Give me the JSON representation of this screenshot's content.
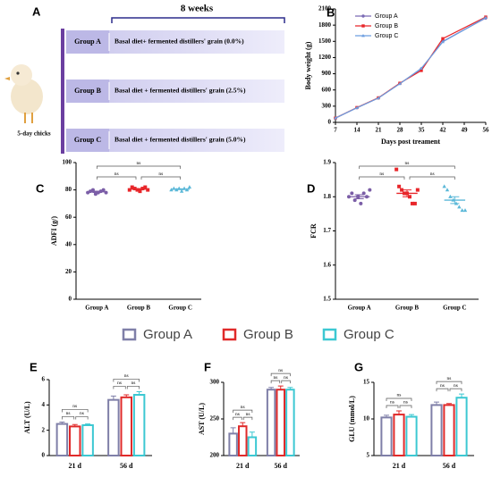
{
  "diagram": {
    "label": "A",
    "duration": "8 weeks",
    "animal": "5-day chicks",
    "groups": [
      {
        "name": "Group A",
        "treatment": "Basal diet+ fermented distillers' grain (0.0%)"
      },
      {
        "name": "Group B",
        "treatment": "Basal diet + fermented distillers' grain (2.5%)"
      },
      {
        "name": "Group C",
        "treatment": "Basal diet + fermented distillers' grain (5.0%)"
      }
    ]
  },
  "chart_data": [
    {
      "type": "line",
      "label": "B",
      "ylabel": "Body weight (g)",
      "xlabel": "Days post treament",
      "x": [
        7,
        14,
        21,
        28,
        35,
        42,
        56
      ],
      "series": [
        {
          "name": "Group A",
          "color": "#7b6bb5",
          "values": [
            80,
            270,
            450,
            720,
            990,
            1500,
            1930
          ]
        },
        {
          "name": "Group B",
          "color": "#e8262a",
          "values": [
            80,
            275,
            455,
            725,
            960,
            1550,
            1950
          ]
        },
        {
          "name": "Group C",
          "color": "#6c9ee0",
          "values": [
            80,
            270,
            450,
            715,
            1000,
            1490,
            1940
          ]
        }
      ],
      "xlim": [
        7,
        56
      ],
      "xticks": [
        7,
        14,
        21,
        28,
        35,
        42,
        49,
        56
      ],
      "ylim": [
        0,
        2100
      ],
      "yticks": [
        0,
        300,
        600,
        900,
        1200,
        1500,
        1800,
        2100
      ],
      "legend": "upper left"
    },
    {
      "type": "dot",
      "label": "C",
      "ylabel": "ADFI (g/)",
      "categories": [
        "Group A",
        "Group B",
        "Group C"
      ],
      "colors": [
        "#7b5ea7",
        "#e8262a",
        "#5bb8d8"
      ],
      "points": [
        [
          78,
          79,
          80,
          77,
          78,
          79,
          80,
          78
        ],
        [
          80,
          82,
          81,
          80,
          79,
          81,
          82,
          80
        ],
        [
          80,
          81,
          80,
          81,
          79,
          81,
          80,
          82
        ]
      ],
      "means": [
        78.6,
        80.6,
        80.5
      ],
      "errors": [
        0.5,
        0.4,
        0.3
      ],
      "ylim": [
        0,
        100
      ],
      "yticks": [
        0,
        20,
        40,
        60,
        80,
        100
      ],
      "annotations": [
        "ns",
        "ns",
        "ns"
      ]
    },
    {
      "type": "dot",
      "label": "D",
      "ylabel": "FCR",
      "categories": [
        "Group A",
        "Group B",
        "Group C"
      ],
      "colors": [
        "#7b5ea7",
        "#e8262a",
        "#5bb8d8"
      ],
      "points": [
        [
          1.8,
          1.81,
          1.79,
          1.8,
          1.78,
          1.81,
          1.8,
          1.82
        ],
        [
          1.88,
          1.83,
          1.82,
          1.81,
          1.81,
          1.8,
          1.78,
          1.78,
          1.82
        ],
        [
          1.83,
          1.82,
          1.8,
          1.79,
          1.78,
          1.77,
          1.76,
          1.76
        ]
      ],
      "means": [
        1.8,
        1.81,
        1.79
      ],
      "errors": [
        0.006,
        0.01,
        0.01
      ],
      "ylim": [
        1.5,
        1.9
      ],
      "yticks": [
        1.5,
        1.6,
        1.7,
        1.8,
        1.9
      ],
      "annotations": [
        "ns",
        "ns",
        "ns"
      ]
    },
    {
      "type": "bar",
      "label": "E",
      "ylabel": "ALT (U/L)",
      "categories": [
        "21 d",
        "56 d"
      ],
      "series": [
        {
          "name": "Group A",
          "color": "#7f7fa8",
          "values": [
            2.5,
            4.4
          ],
          "errors": [
            0.15,
            0.3
          ]
        },
        {
          "name": "Group B",
          "color": "#e02a2a",
          "values": [
            2.3,
            4.6
          ],
          "errors": [
            0.15,
            0.2
          ]
        },
        {
          "name": "Group C",
          "color": "#3cc8d2",
          "values": [
            2.4,
            4.8
          ],
          "errors": [
            0.1,
            0.25
          ]
        }
      ],
      "ylim": [
        0,
        6
      ],
      "yticks": [
        0,
        2,
        4,
        6
      ],
      "annotations": [
        "ns",
        "ns",
        "ns",
        "ns",
        "ns",
        "ns"
      ]
    },
    {
      "type": "bar",
      "label": "F",
      "ylabel": "AST (U/L)",
      "categories": [
        "21 d",
        "56 d"
      ],
      "series": [
        {
          "name": "Group A",
          "color": "#7f7fa8",
          "values": [
            230,
            290
          ],
          "errors": [
            8,
            3
          ]
        },
        {
          "name": "Group B",
          "color": "#e02a2a",
          "values": [
            240,
            290
          ],
          "errors": [
            5,
            5
          ]
        },
        {
          "name": "Group C",
          "color": "#3cc8d2",
          "values": [
            225,
            290
          ],
          "errors": [
            7,
            3
          ]
        }
      ],
      "ylim": [
        200,
        300
      ],
      "yticks": [
        200,
        250,
        300
      ],
      "annotations": [
        "ns",
        "ns",
        "ns",
        "ns",
        "ns",
        "ns"
      ]
    },
    {
      "type": "bar",
      "label": "G",
      "ylabel": "GLU (mmol/L)",
      "categories": [
        "21 d",
        "56 d"
      ],
      "series": [
        {
          "name": "Group A",
          "color": "#7f7fa8",
          "values": [
            10.2,
            11.9
          ],
          "errors": [
            0.3,
            0.4
          ]
        },
        {
          "name": "Group B",
          "color": "#e02a2a",
          "values": [
            10.6,
            11.9
          ],
          "errors": [
            0.5,
            0.2
          ]
        },
        {
          "name": "Group C",
          "color": "#3cc8d2",
          "values": [
            10.3,
            12.9
          ],
          "errors": [
            0.3,
            0.5
          ]
        }
      ],
      "ylim": [
        5,
        15
      ],
      "yticks": [
        5,
        10,
        15
      ],
      "annotations": [
        "ns",
        "ns",
        "ns",
        "ns",
        "ns",
        "ns"
      ]
    }
  ]
}
